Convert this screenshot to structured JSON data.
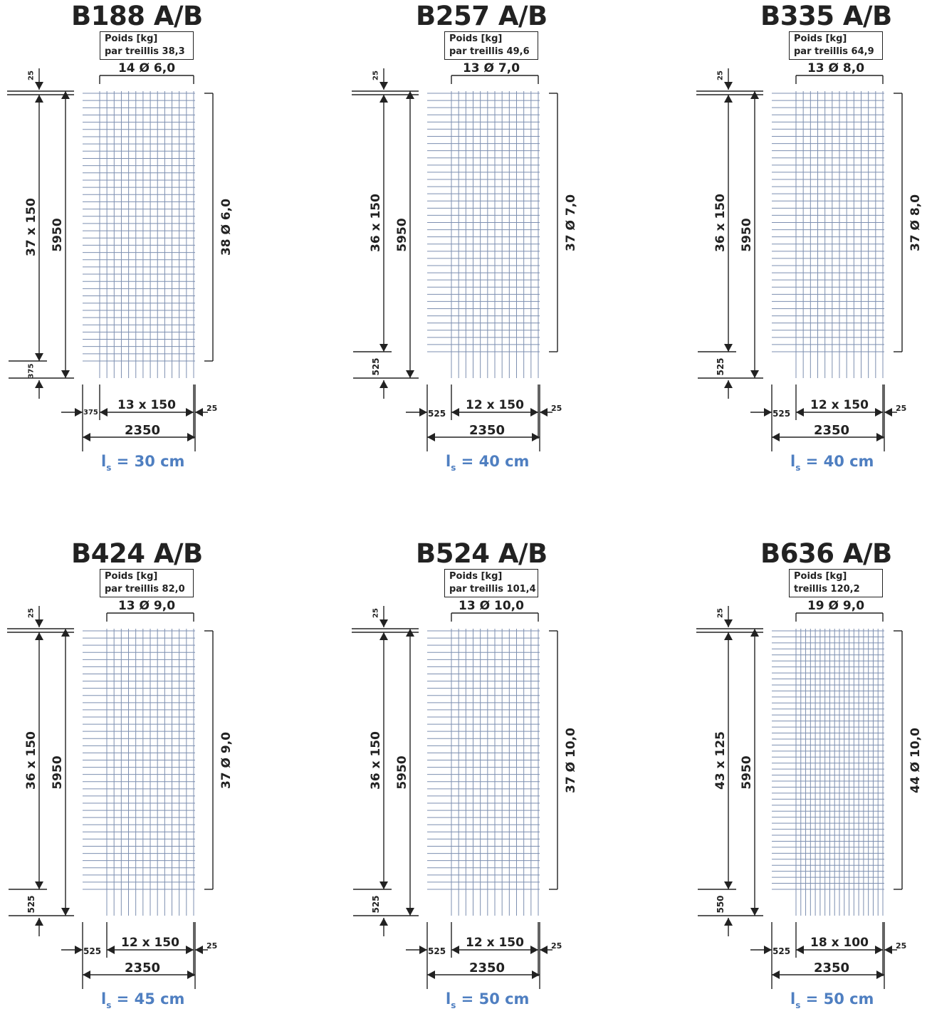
{
  "colors": {
    "ink": "#222222",
    "grid": "#7d8fb0",
    "lap": "#4f7fc1"
  },
  "panels": [
    {
      "name": "b188",
      "title": "B188 A/B",
      "weight_label": "Poids [kg]",
      "weight_line": "par treillis 38,3",
      "top_bars": "14 Ø 6,0",
      "side_bars": "38 Ø 6,0",
      "spacing_v": "37 x 150",
      "length": "5950",
      "top_gap": "25",
      "bottom_gap": "375",
      "spacing_h": "13 x 150",
      "left_gap": "375",
      "right_gap": "25",
      "width": "2350",
      "lap_prefix": "l",
      "lap_sub": "s",
      "lap_value": " = 30 cm",
      "n_long": 14,
      "n_trans": 38
    },
    {
      "name": "b257",
      "title": "B257 A/B",
      "weight_label": "Poids [kg]",
      "weight_line": "par treillis 49,6",
      "top_bars": "13 Ø 7,0",
      "side_bars": "37 Ø 7,0",
      "spacing_v": "36 x 150",
      "length": "5950",
      "top_gap": "25",
      "bottom_gap": "525",
      "spacing_h": "12 x 150",
      "left_gap": "525",
      "right_gap": "25",
      "width": "2350",
      "lap_prefix": "l",
      "lap_sub": "s",
      "lap_value": " = 40 cm",
      "n_long": 13,
      "n_trans": 37
    },
    {
      "name": "b335",
      "title": "B335 A/B",
      "weight_label": "Poids [kg]",
      "weight_line": "par treillis 64,9",
      "top_bars": "13 Ø 8,0",
      "side_bars": "37 Ø 8,0",
      "spacing_v": "36 x 150",
      "length": "5950",
      "top_gap": "25",
      "bottom_gap": "525",
      "spacing_h": "12 x 150",
      "left_gap": "525",
      "right_gap": "25",
      "width": "2350",
      "lap_prefix": "l",
      "lap_sub": "s",
      "lap_value": " = 40 cm",
      "n_long": 13,
      "n_trans": 37
    },
    {
      "name": "b424",
      "title": "B424 A/B",
      "weight_label": "Poids [kg]",
      "weight_line": "par treillis 82,0",
      "top_bars": "13 Ø 9,0",
      "side_bars": "37 Ø 9,0",
      "spacing_v": "36 x 150",
      "length": "5950",
      "top_gap": "25",
      "bottom_gap": "525",
      "spacing_h": "12 x 150",
      "left_gap": "525",
      "right_gap": "25",
      "width": "2350",
      "lap_prefix": "l",
      "lap_sub": "s",
      "lap_value": " = 45 cm",
      "n_long": 13,
      "n_trans": 37
    },
    {
      "name": "b524",
      "title": "B524 A/B",
      "weight_label": "Poids [kg]",
      "weight_line": "par treillis 101,4",
      "top_bars": "13 Ø 10,0",
      "side_bars": "37 Ø 10,0",
      "spacing_v": "36 x 150",
      "length": "5950",
      "top_gap": "25",
      "bottom_gap": "525",
      "spacing_h": "12 x 150",
      "left_gap": "525",
      "right_gap": "25",
      "width": "2350",
      "lap_prefix": "l",
      "lap_sub": "s",
      "lap_value": " = 50 cm",
      "n_long": 13,
      "n_trans": 37
    },
    {
      "name": "b636",
      "title": "B636 A/B",
      "weight_label": "Poids [kg]",
      "weight_line": "treillis 120,2",
      "top_bars": "19 Ø 9,0",
      "side_bars": "44 Ø 10,0",
      "spacing_v": "43 x 125",
      "length": "5950",
      "top_gap": "25",
      "bottom_gap": "550",
      "spacing_h": "18 x 100",
      "left_gap": "525",
      "right_gap": "25",
      "width": "2350",
      "lap_prefix": "l",
      "lap_sub": "s",
      "lap_value": " = 50 cm",
      "n_long": 19,
      "n_trans": 44
    }
  ]
}
